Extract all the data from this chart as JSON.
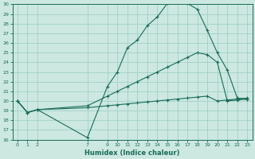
{
  "xlabel": "Humidex (Indice chaleur)",
  "bg_color": "#cce8e0",
  "grid_color": "#99ccc4",
  "line_color": "#1a6b5a",
  "ylim": [
    16,
    30
  ],
  "xlim": [
    -0.5,
    23.5
  ],
  "yticks": [
    16,
    17,
    18,
    19,
    20,
    21,
    22,
    23,
    24,
    25,
    26,
    27,
    28,
    29,
    30
  ],
  "xtick_positions": [
    0,
    1,
    2,
    7,
    9,
    10,
    11,
    12,
    13,
    14,
    15,
    16,
    17,
    18,
    19,
    20,
    21,
    22,
    23
  ],
  "xtick_labels": [
    "0",
    "1",
    "2",
    "7",
    "9",
    "10",
    "11",
    "12",
    "13",
    "14",
    "15",
    "16",
    "17",
    "18",
    "19",
    "20",
    "21",
    "22",
    "23"
  ],
  "line1_x": [
    0,
    1,
    2,
    7,
    9,
    10,
    11,
    12,
    13,
    14,
    15,
    16,
    17,
    18,
    19,
    20,
    21,
    22,
    23
  ],
  "line1_y": [
    20.0,
    18.8,
    19.1,
    16.2,
    21.5,
    23.0,
    25.5,
    26.3,
    27.8,
    28.7,
    30.1,
    30.2,
    30.1,
    29.5,
    27.3,
    25.0,
    23.2,
    20.3,
    20.2
  ],
  "line2_x": [
    0,
    1,
    2,
    7,
    9,
    10,
    11,
    12,
    13,
    14,
    15,
    16,
    17,
    18,
    19,
    20,
    21,
    22,
    23
  ],
  "line2_y": [
    20.0,
    18.8,
    19.1,
    19.5,
    20.5,
    21.0,
    21.5,
    22.0,
    22.5,
    23.0,
    23.5,
    24.0,
    24.5,
    25.0,
    24.8,
    24.0,
    20.0,
    20.1,
    20.2
  ],
  "line3_x": [
    0,
    1,
    2,
    7,
    9,
    10,
    11,
    12,
    13,
    14,
    15,
    16,
    17,
    18,
    19,
    20,
    21,
    22,
    23
  ],
  "line3_y": [
    20.0,
    18.8,
    19.1,
    19.3,
    19.5,
    19.6,
    19.7,
    19.8,
    19.9,
    20.0,
    20.1,
    20.2,
    20.3,
    20.4,
    20.5,
    20.0,
    20.1,
    20.2,
    20.3
  ]
}
